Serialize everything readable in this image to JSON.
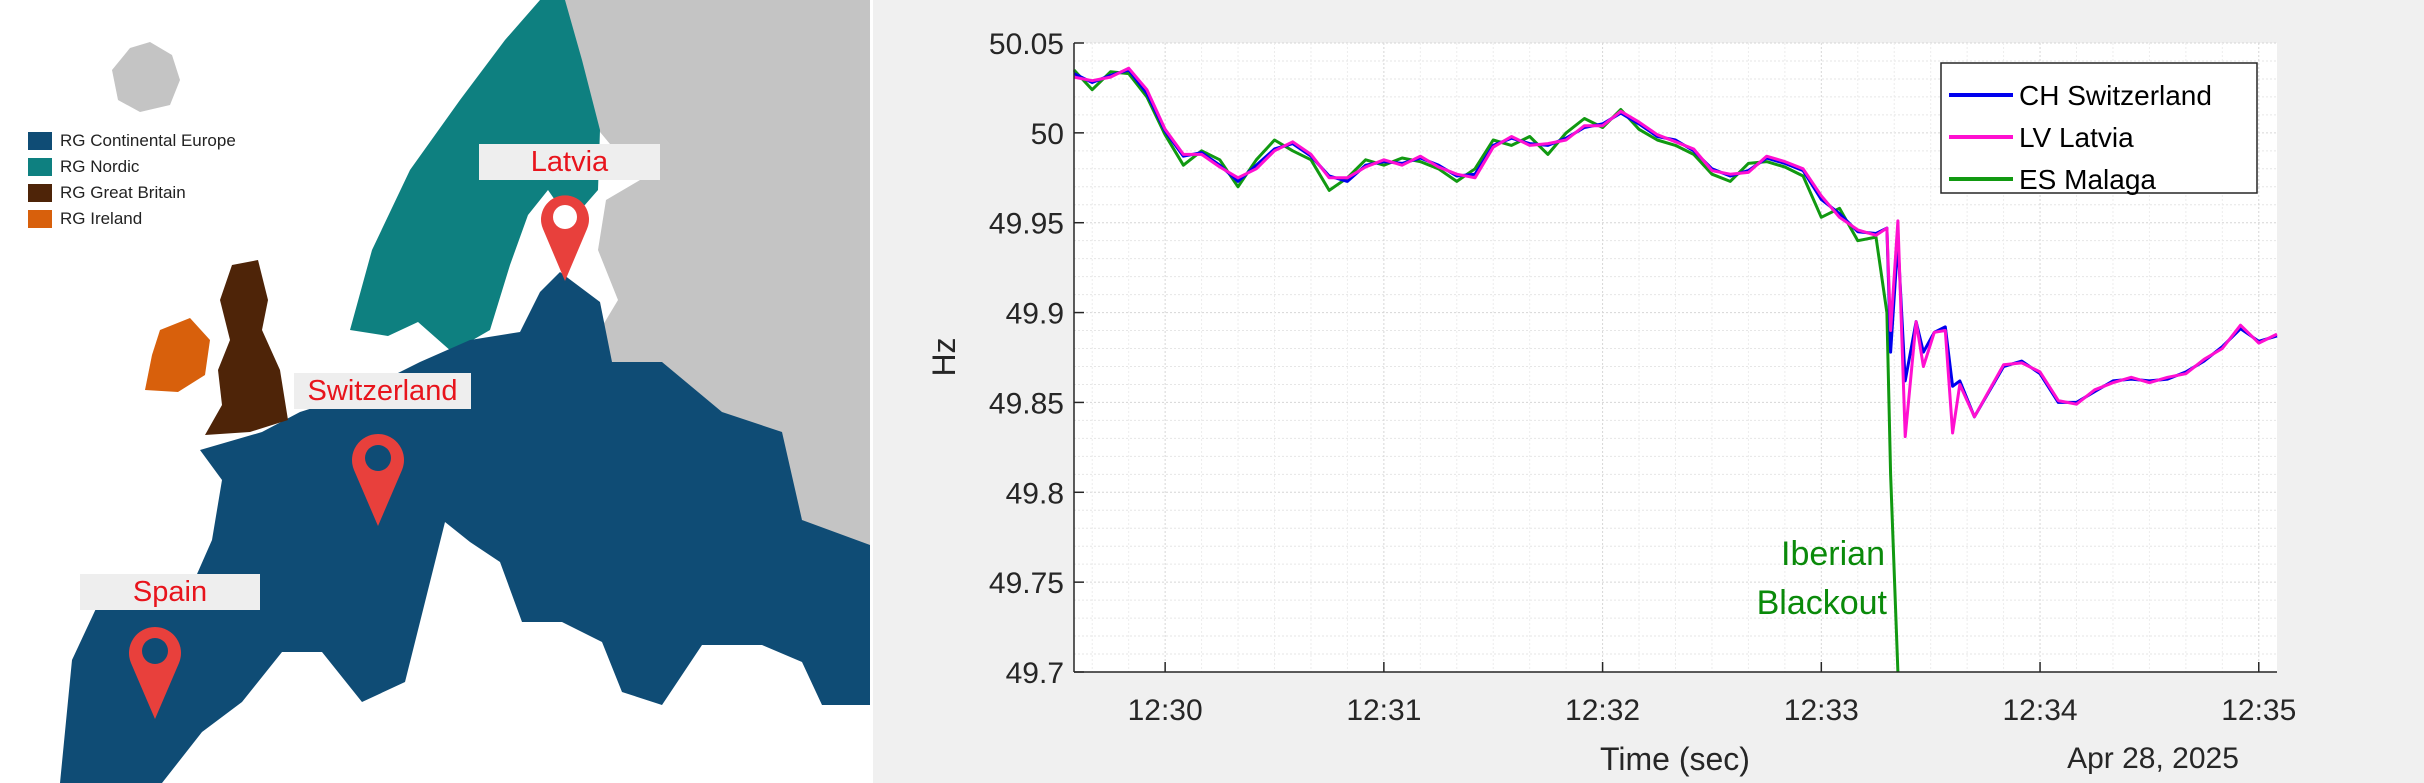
{
  "map": {
    "legend": [
      {
        "label": "RG Continental Europe",
        "color": "#0f4c75"
      },
      {
        "label": "RG Nordic",
        "color": "#0e8080"
      },
      {
        "label": "RG Great Britain",
        "color": "#4e2408"
      },
      {
        "label": "RG Ireland",
        "color": "#d8600c"
      }
    ],
    "locations": [
      {
        "label": "Latvia",
        "icon": "map-pin-icon"
      },
      {
        "label": "Switzerland",
        "icon": "map-pin-icon"
      },
      {
        "label": "Spain",
        "icon": "map-pin-icon"
      }
    ],
    "colors": {
      "other_land": "#c4c4c4",
      "pin": "#e8403c",
      "borders": "#ffffff"
    }
  },
  "chart_data": {
    "type": "line",
    "xlabel": "Time (sec)",
    "ylabel": "Hz",
    "date_label": "Apr 28, 2025",
    "xlim": [
      "12:29:35",
      "12:35:05"
    ],
    "ylim": [
      49.7,
      50.05
    ],
    "yticks": [
      "49.7",
      "49.75",
      "49.8",
      "49.85",
      "49.9",
      "49.95",
      "50",
      "50.05"
    ],
    "xticks": [
      "12:30",
      "12:31",
      "12:32",
      "12:33",
      "12:34",
      "12:35"
    ],
    "grid": true,
    "minor_grid": true,
    "legend_position": "top-right",
    "annotation": {
      "lines": [
        "Iberian",
        "Blackout"
      ],
      "color": "#0a8a0a",
      "at_time": "12:33:20"
    },
    "t": [
      "12:29:35",
      "12:29:40",
      "12:29:45",
      "12:29:50",
      "12:29:55",
      "12:30:00",
      "12:30:05",
      "12:30:10",
      "12:30:15",
      "12:30:20",
      "12:30:25",
      "12:30:30",
      "12:30:35",
      "12:30:40",
      "12:30:45",
      "12:30:50",
      "12:30:55",
      "12:31:00",
      "12:31:05",
      "12:31:10",
      "12:31:15",
      "12:31:20",
      "12:31:25",
      "12:31:30",
      "12:31:35",
      "12:31:40",
      "12:31:45",
      "12:31:50",
      "12:31:55",
      "12:32:00",
      "12:32:05",
      "12:32:10",
      "12:32:15",
      "12:32:20",
      "12:32:25",
      "12:32:30",
      "12:32:35",
      "12:32:40",
      "12:32:45",
      "12:32:50",
      "12:32:55",
      "12:33:00",
      "12:33:05",
      "12:33:10",
      "12:33:15",
      "12:33:18",
      "12:33:19",
      "12:33:21",
      "12:33:23",
      "12:33:26",
      "12:33:28",
      "12:33:31",
      "12:33:34",
      "12:33:36",
      "12:33:38",
      "12:33:42",
      "12:33:50",
      "12:33:55",
      "12:34:00",
      "12:34:05",
      "12:34:10",
      "12:34:15",
      "12:34:20",
      "12:34:25",
      "12:34:30",
      "12:34:35",
      "12:34:40",
      "12:34:45",
      "12:34:50",
      "12:34:55",
      "12:35:00",
      "12:35:05"
    ],
    "series": [
      {
        "name": "CH Switzerland",
        "color": "#0000ee",
        "values": [
          50.033,
          50.028,
          50.032,
          50.035,
          50.022,
          50.001,
          49.987,
          49.989,
          49.982,
          49.973,
          49.982,
          49.991,
          49.994,
          49.987,
          49.976,
          49.973,
          49.982,
          49.984,
          49.983,
          49.986,
          49.982,
          49.976,
          49.977,
          49.993,
          49.997,
          49.994,
          49.993,
          49.997,
          50.003,
          50.005,
          50.011,
          50.005,
          49.998,
          49.996,
          49.99,
          49.98,
          49.976,
          49.979,
          49.986,
          49.983,
          49.979,
          49.963,
          49.955,
          49.945,
          49.944,
          49.947,
          49.878,
          49.94,
          49.862,
          49.895,
          49.878,
          49.889,
          49.892,
          49.859,
          49.862,
          49.842,
          49.87,
          49.873,
          49.866,
          49.85,
          49.85,
          49.856,
          49.862,
          49.863,
          49.862,
          49.863,
          49.867,
          49.873,
          49.881,
          49.891,
          49.884,
          49.887
        ]
      },
      {
        "name": "LV Latvia",
        "color": "#ff10d0",
        "values": [
          50.031,
          50.029,
          50.031,
          50.036,
          50.024,
          50.002,
          49.988,
          49.988,
          49.981,
          49.975,
          49.98,
          49.99,
          49.995,
          49.988,
          49.975,
          49.975,
          49.981,
          49.985,
          49.982,
          49.987,
          49.981,
          49.977,
          49.975,
          49.992,
          49.998,
          49.993,
          49.994,
          49.996,
          50.004,
          50.004,
          50.012,
          50.006,
          49.999,
          49.995,
          49.991,
          49.979,
          49.977,
          49.978,
          49.987,
          49.984,
          49.98,
          49.965,
          49.953,
          49.946,
          49.943,
          49.947,
          49.89,
          49.951,
          49.831,
          49.895,
          49.87,
          49.889,
          49.89,
          49.833,
          49.86,
          49.842,
          49.871,
          49.872,
          49.867,
          49.851,
          49.849,
          49.857,
          49.861,
          49.864,
          49.861,
          49.864,
          49.866,
          49.874,
          49.88,
          49.893,
          49.883,
          49.888
        ]
      },
      {
        "name": "ES Malaga",
        "color": "#119911",
        "values": [
          50.035,
          50.024,
          50.034,
          50.033,
          50.02,
          49.999,
          49.982,
          49.99,
          49.985,
          49.97,
          49.985,
          49.996,
          49.99,
          49.985,
          49.968,
          49.975,
          49.985,
          49.982,
          49.986,
          49.984,
          49.98,
          49.973,
          49.98,
          49.996,
          49.993,
          49.998,
          49.988,
          50.0,
          50.008,
          50.003,
          50.013,
          50.002,
          49.996,
          49.993,
          49.988,
          49.977,
          49.973,
          49.983,
          49.984,
          49.981,
          49.976,
          49.953,
          49.958,
          49.94,
          49.942,
          49.9,
          49.81,
          49.7,
          null,
          null,
          null,
          null,
          null,
          null,
          null,
          null,
          null,
          null,
          null,
          null,
          null,
          null,
          null,
          null,
          null,
          null,
          null,
          null,
          null,
          null,
          null,
          null
        ]
      }
    ]
  }
}
